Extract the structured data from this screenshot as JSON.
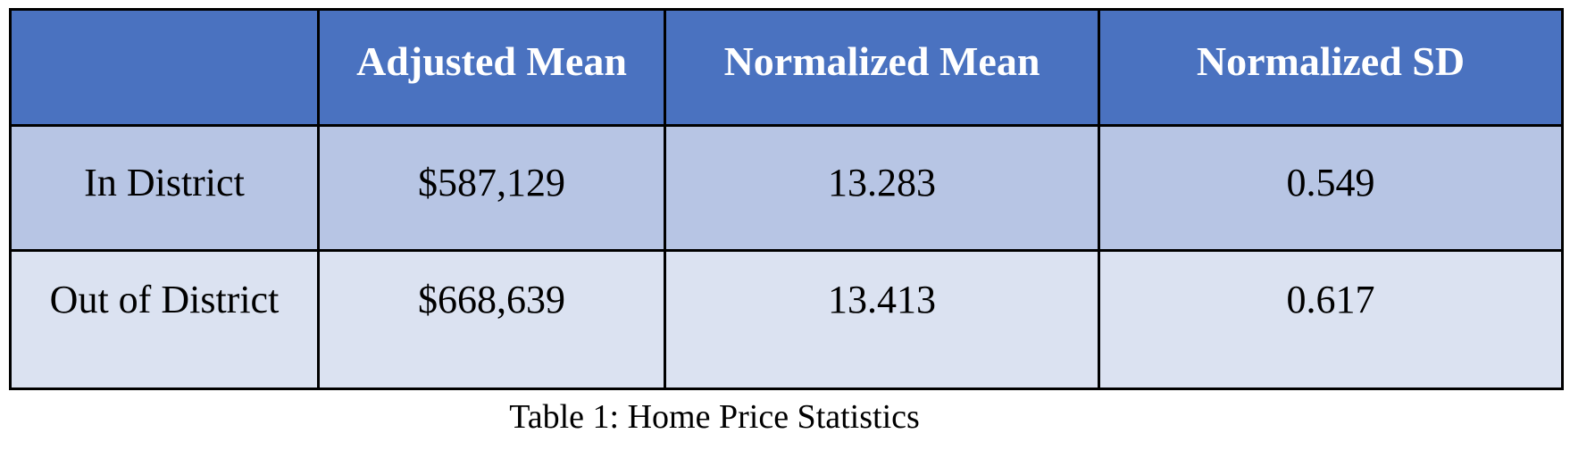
{
  "table": {
    "headers": [
      "",
      "Adjusted Mean",
      "Normalized Mean",
      "Normalized SD"
    ],
    "rows": [
      [
        "In District",
        "$587,129",
        "13.283",
        "0.549"
      ],
      [
        "Out of District",
        "$668,639",
        "13.413",
        "0.617"
      ]
    ],
    "colors": {
      "header_bg": "#4a72c0",
      "header_text": "#ffffff",
      "row1_bg": "#b7c5e4",
      "row2_bg": "#dbe2f1",
      "border": "#000000"
    }
  },
  "caption": "Table 1: Home Price Statistics"
}
